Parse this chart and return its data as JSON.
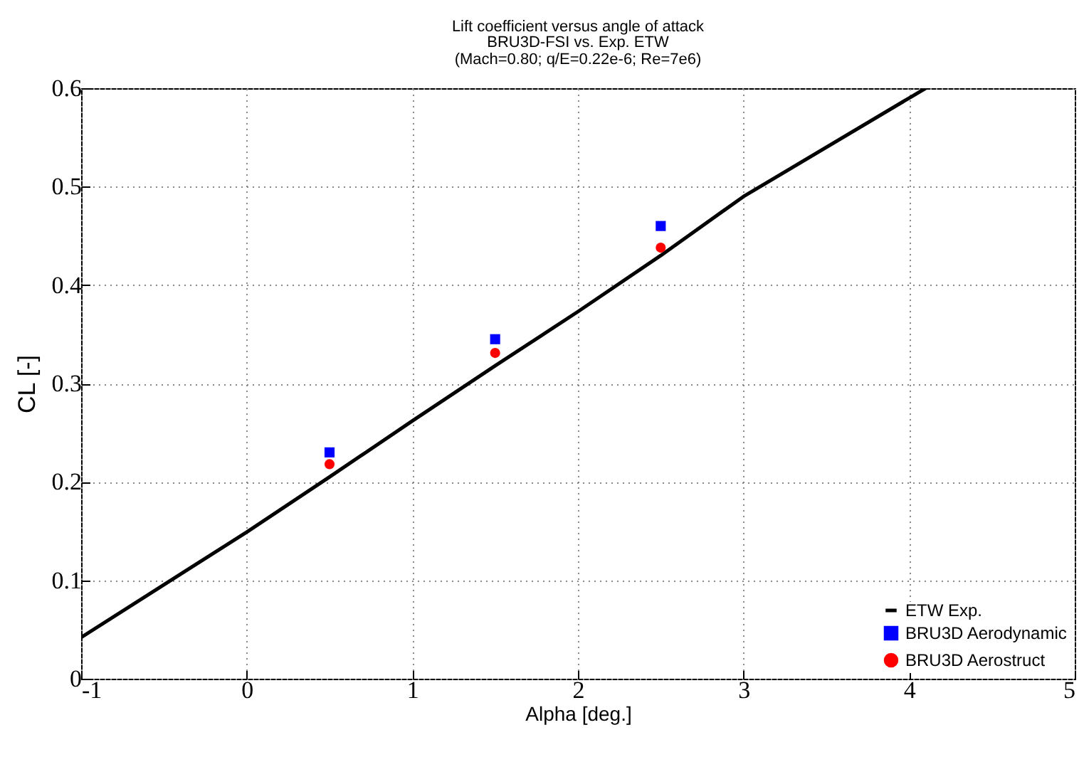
{
  "chart_data": {
    "type": "line",
    "title": "Lift coefficient versus angle of attack",
    "subtitle": [
      "BRU3D-FSI vs. Exp. ETW",
      "(Mach=0.80; q/E=0.22e-6; Re=7e6)"
    ],
    "xlabel": "Alpha [deg.]",
    "ylabel": "CL [-]",
    "xlim": [
      -1,
      5
    ],
    "xticks": [
      -1,
      0,
      1,
      2,
      3,
      4,
      5
    ],
    "ylim": [
      0,
      0.6
    ],
    "yticks": [
      0,
      0.1,
      0.2,
      0.3,
      0.4,
      0.5,
      0.6
    ],
    "grid": true,
    "legend": "bottom right",
    "series": [
      {
        "name": "ETW Exp.",
        "color": "#000000",
        "line_style": "solid",
        "x": [
          -1,
          0,
          0.5,
          1,
          1.5,
          2,
          2.5,
          3,
          4,
          4.1
        ],
        "values": [
          0.042,
          0.149,
          0.205,
          0.262,
          0.318,
          0.373,
          0.43,
          0.49,
          0.59,
          0.6
        ]
      },
      {
        "name": "BRU3D Aerodynamic",
        "type": "scatter",
        "marker": "square",
        "color": "#0000ff",
        "x": [
          0.5,
          1.5,
          2.5
        ],
        "values": [
          0.23,
          0.345,
          0.46
        ]
      },
      {
        "name": "BRU3D Aerostruct",
        "type": "scatter",
        "marker": "circle",
        "color": "#ff0000",
        "x": [
          0.5,
          1.5,
          2.5
        ],
        "values": [
          0.218,
          0.331,
          0.438
        ]
      }
    ]
  }
}
